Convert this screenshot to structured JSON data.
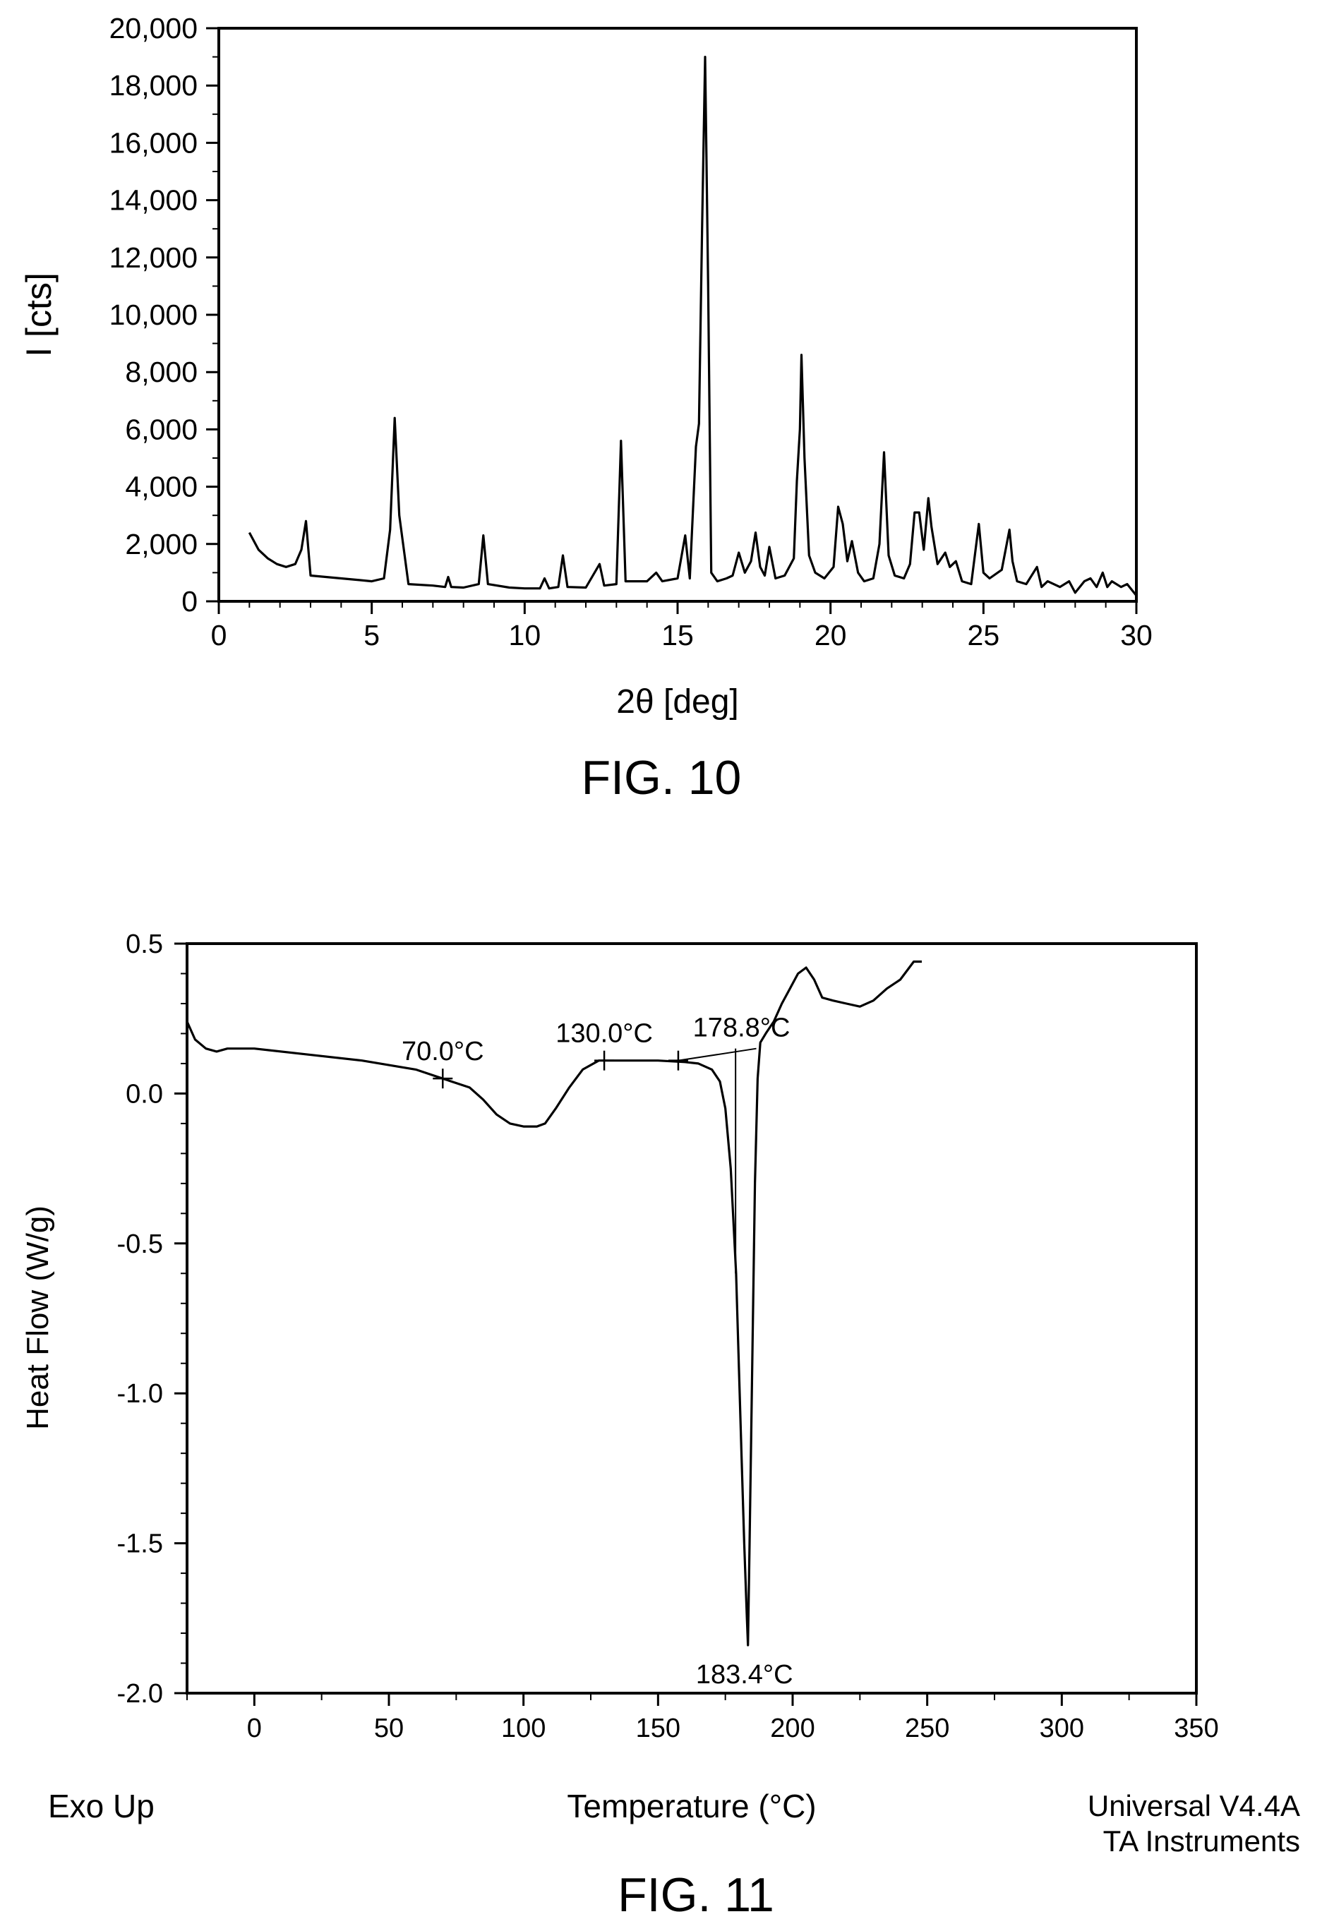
{
  "figures": [
    {
      "caption": "FIG. 10"
    },
    {
      "caption": "FIG. 11"
    }
  ],
  "chart_data": [
    {
      "type": "line",
      "xlabel": "2θ [deg]",
      "ylabel": "I [cts]",
      "xlim": [
        0,
        30
      ],
      "ylim": [
        0,
        20000
      ],
      "xticks": [
        "0",
        "5",
        "10",
        "15",
        "20",
        "25",
        "30"
      ],
      "yticks": [
        "0",
        "2,000",
        "4,000",
        "6,000",
        "8,000",
        "10,000",
        "12,000",
        "14,000",
        "16,000",
        "18,000",
        "20,000"
      ],
      "grid": false,
      "x": [
        1.0,
        1.3,
        1.6,
        1.9,
        2.2,
        2.5,
        2.7,
        2.85,
        3.0,
        3.5,
        4.0,
        4.5,
        5.0,
        5.4,
        5.6,
        5.75,
        5.9,
        6.2,
        7.0,
        7.4,
        7.5,
        7.6,
        8.0,
        8.5,
        8.65,
        8.8,
        9.5,
        10.0,
        10.5,
        10.65,
        10.8,
        11.1,
        11.25,
        11.4,
        12.0,
        12.45,
        12.6,
        13.0,
        13.15,
        13.3,
        14.0,
        14.3,
        14.5,
        15.0,
        15.25,
        15.4,
        15.6,
        15.7,
        15.8,
        15.9,
        16.0,
        16.1,
        16.3,
        16.6,
        16.8,
        17.0,
        17.2,
        17.4,
        17.55,
        17.7,
        17.85,
        18.0,
        18.2,
        18.5,
        18.8,
        18.9,
        19.0,
        19.05,
        19.15,
        19.3,
        19.5,
        19.8,
        20.1,
        20.25,
        20.4,
        20.55,
        20.7,
        20.9,
        21.1,
        21.4,
        21.6,
        21.75,
        21.9,
        22.1,
        22.4,
        22.6,
        22.75,
        22.9,
        23.05,
        23.2,
        23.3,
        23.5,
        23.75,
        23.9,
        24.1,
        24.3,
        24.6,
        24.85,
        25.0,
        25.2,
        25.6,
        25.85,
        25.95,
        26.1,
        26.4,
        26.75,
        26.9,
        27.1,
        27.5,
        27.8,
        28.0,
        28.3,
        28.5,
        28.7,
        28.9,
        29.05,
        29.2,
        29.5,
        29.7,
        30.0
      ],
      "y": [
        2400,
        1800,
        1500,
        1300,
        1200,
        1300,
        1800,
        2800,
        900,
        850,
        800,
        750,
        700,
        800,
        2500,
        6400,
        3000,
        600,
        550,
        500,
        850,
        500,
        480,
        600,
        2300,
        600,
        480,
        450,
        450,
        800,
        450,
        500,
        1600,
        500,
        480,
        1300,
        550,
        600,
        5600,
        700,
        700,
        1000,
        700,
        800,
        2300,
        800,
        5400,
        6200,
        13000,
        19000,
        11000,
        1000,
        700,
        800,
        900,
        1700,
        1000,
        1400,
        2400,
        1200,
        900,
        1900,
        800,
        900,
        1500,
        4200,
        6000,
        8600,
        5000,
        1600,
        1000,
        800,
        1200,
        3300,
        2700,
        1400,
        2100,
        1000,
        700,
        800,
        2000,
        5200,
        1600,
        900,
        800,
        1300,
        3100,
        3100,
        1800,
        3600,
        2600,
        1300,
        1700,
        1200,
        1400,
        700,
        600,
        2700,
        1000,
        800,
        1100,
        2500,
        1400,
        700,
        600,
        1200,
        500,
        700,
        500,
        700,
        300,
        700,
        800,
        500,
        1000,
        500,
        700,
        500,
        600,
        200
      ]
    },
    {
      "type": "line",
      "xlabel": "Temperature (°C)",
      "ylabel": "Heat Flow (W/g)",
      "xlim": [
        -25,
        350
      ],
      "ylim": [
        -2.0,
        0.5
      ],
      "xticks": [
        "0",
        "50",
        "100",
        "150",
        "200",
        "250",
        "300",
        "350"
      ],
      "yticks": [
        "-2.0",
        "-1.5",
        "-1.0",
        "-0.5",
        "0.0",
        "0.5"
      ],
      "grid": false,
      "x": [
        -25,
        -22,
        -18,
        -14,
        -10,
        -5,
        0,
        20,
        40,
        60,
        70,
        80,
        85,
        90,
        95,
        100,
        105,
        108,
        112,
        117,
        122,
        128,
        133,
        140,
        150,
        160,
        165,
        170,
        173,
        175,
        177,
        179,
        180,
        181,
        182,
        183,
        183.4,
        184,
        185,
        186,
        187,
        188,
        190,
        193,
        196,
        199,
        202,
        205,
        208,
        211,
        215,
        220,
        225,
        230,
        235,
        240,
        245,
        248
      ],
      "y": [
        0.24,
        0.18,
        0.15,
        0.14,
        0.15,
        0.15,
        0.15,
        0.13,
        0.11,
        0.08,
        0.05,
        0.02,
        -0.02,
        -0.07,
        -0.1,
        -0.11,
        -0.11,
        -0.1,
        -0.05,
        0.02,
        0.08,
        0.11,
        0.11,
        0.11,
        0.11,
        0.105,
        0.1,
        0.08,
        0.04,
        -0.05,
        -0.25,
        -0.6,
        -0.9,
        -1.2,
        -1.5,
        -1.75,
        -1.84,
        -1.5,
        -0.9,
        -0.3,
        0.05,
        0.17,
        0.2,
        0.24,
        0.3,
        0.35,
        0.4,
        0.42,
        0.38,
        0.32,
        0.31,
        0.3,
        0.29,
        0.31,
        0.35,
        0.38,
        0.44,
        0.44
      ],
      "annotations": [
        {
          "label": "70.0°C",
          "x": 70,
          "y": 0.05
        },
        {
          "label": "130.0°C",
          "x": 130,
          "y": 0.11
        },
        {
          "label": "178.8°C",
          "x": 157.5,
          "y": 0.11
        },
        {
          "label": "183.4°C",
          "x": 183.4,
          "y": -1.84
        }
      ],
      "footer_left": "Exo Up",
      "footer_right": [
        "Universal V4.4A",
        "TA Instruments"
      ]
    }
  ]
}
